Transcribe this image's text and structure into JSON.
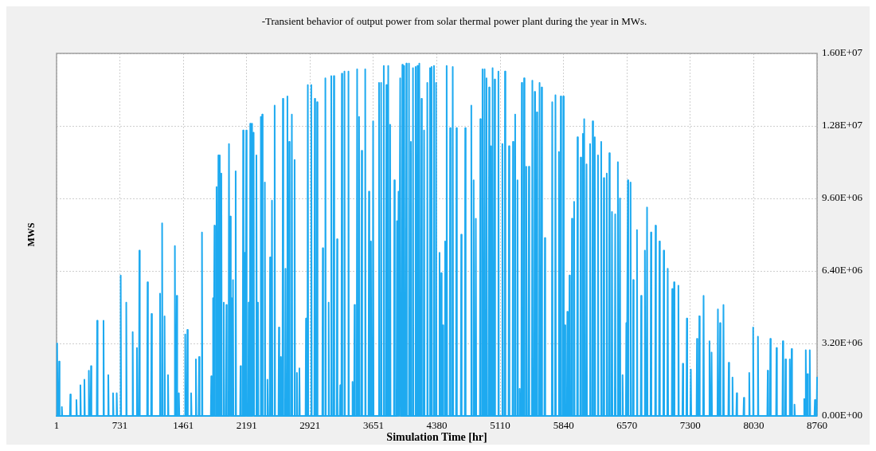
{
  "chart_data": {
    "type": "line",
    "title": "-Transient behavior of output power from solar thermal power plant during the year in MWs.",
    "xlabel": "Simulation Time [hr]",
    "ylabel": "MWS",
    "x": [
      1,
      8,
      13,
      26,
      31,
      36,
      57,
      62,
      67,
      155,
      160,
      165,
      225,
      230,
      235,
      271,
      276,
      281,
      317,
      322,
      327,
      368,
      373,
      378,
      393,
      398,
      403,
      464,
      469,
      474,
      537,
      542,
      547,
      592,
      597,
      602,
      647,
      652,
      657,
      689,
      694,
      699,
      735,
      740,
      745,
      799,
      804,
      809,
      873,
      878,
      883,
      922,
      927,
      932,
      950,
      955,
      960,
      1044,
      1049,
      1054,
      1090,
      1095,
      1100,
      1188,
      1193,
      1198,
      1212,
      1217,
      1222,
      1240,
      1245,
      1250,
      1280,
      1285,
      1290,
      1359,
      1364,
      1369,
      1381,
      1386,
      1391,
      1405,
      1410,
      1415,
      1478,
      1483,
      1488,
      1503,
      1508,
      1513,
      1546,
      1551,
      1556,
      1601,
      1606,
      1611,
      1638,
      1643,
      1648,
      1671,
      1676,
      1681,
      1778,
      1783,
      1788,
      1799,
      1804,
      1809,
      1815,
      1820,
      1825,
      1839,
      1844,
      1849,
      1860,
      1865,
      1870,
      1876,
      1881,
      1886,
      1894,
      1899,
      1904,
      1922,
      1927,
      1932,
      1952,
      1957,
      1962,
      1982,
      1987,
      1992,
      1998,
      2003,
      2008,
      2013,
      2018,
      2023,
      2028,
      2033,
      2038,
      2059,
      2064,
      2069,
      2115,
      2120,
      2125,
      2145,
      2150,
      2155,
      2166,
      2171,
      2176,
      2181,
      2186,
      2191,
      2209,
      2214,
      2219,
      2227,
      2232,
      2237,
      2248,
      2253,
      2258,
      2266,
      2271,
      2276,
      2298,
      2303,
      2308,
      2316,
      2321,
      2326,
      2349,
      2354,
      2359,
      2365,
      2370,
      2375,
      2395,
      2400,
      2405,
      2425,
      2430,
      2435,
      2455,
      2460,
      2465,
      2477,
      2482,
      2487,
      2508,
      2513,
      2518,
      2557,
      2562,
      2567,
      2580,
      2585,
      2590,
      2603,
      2608,
      2613,
      2633,
      2638,
      2643,
      2655,
      2660,
      2665,
      2676,
      2681,
      2686,
      2706,
      2711,
      2716,
      2738,
      2743,
      2748,
      2765,
      2770,
      2775,
      2793,
      2798,
      2803,
      2869,
      2874,
      2879,
      2890,
      2895,
      2900,
      2930,
      2935,
      2940,
      2970,
      2975,
      2980,
      2997,
      3002,
      3007,
      3062,
      3067,
      3072,
      3092,
      3097,
      3102,
      3130,
      3135,
      3140,
      3160,
      3165,
      3170,
      3190,
      3195,
      3200,
      3227,
      3232,
      3237,
      3263,
      3268,
      3273,
      3282,
      3287,
      3292,
      3312,
      3317,
      3322,
      3358,
      3363,
      3368,
      3405,
      3410,
      3415,
      3428,
      3433,
      3438,
      3458,
      3463,
      3468,
      3480,
      3485,
      3490,
      3511,
      3516,
      3521,
      3551,
      3556,
      3561,
      3594,
      3599,
      3604,
      3617,
      3622,
      3627,
      3642,
      3647,
      3652,
      3710,
      3715,
      3720,
      3734,
      3739,
      3744,
      3765,
      3770,
      3775,
      3795,
      3800,
      3805,
      3816,
      3821,
      3826,
      3838,
      3843,
      3848,
      3887,
      3892,
      3897,
      3917,
      3922,
      3927,
      3935,
      3940,
      3945,
      3954,
      3959,
      3964,
      3979,
      3984,
      3989,
      4000,
      4005,
      4010,
      4025,
      4030,
      4035,
      4055,
      4060,
      4065,
      4077,
      4082,
      4087,
      4101,
      4106,
      4111,
      4132,
      4137,
      4142,
      4153,
      4158,
      4163,
      4174,
      4179,
      4184,
      4199,
      4204,
      4209,
      4229,
      4234,
      4239,
      4266,
      4271,
      4276,
      4297,
      4302,
      4307,
      4315,
      4320,
      4325,
      4343,
      4348,
      4353,
      4367,
      4372,
      4377,
      4407,
      4412,
      4417,
      4427,
      4432,
      4437,
      4445,
      4450,
      4455,
      4471,
      4476,
      4481,
      4489,
      4494,
      4499,
      4529,
      4534,
      4539,
      4559,
      4564,
      4569,
      4602,
      4607,
      4612,
      4657,
      4662,
      4667,
      4703,
      4708,
      4713,
      4773,
      4778,
      4783,
      4800,
      4805,
      4810,
      4825,
      4830,
      4835,
      4877,
      4882,
      4887,
      4902,
      4907,
      4912,
      4926,
      4931,
      4936,
      4948,
      4953,
      4958,
      4978,
      4983,
      4988,
      4999,
      5004,
      5009,
      5018,
      5023,
      5028,
      5042,
      5047,
      5052,
      5085,
      5090,
      5095,
      5131,
      5136,
      5141,
      5161,
      5166,
      5171,
      5207,
      5212,
      5217,
      5253,
      5258,
      5263,
      5278,
      5283,
      5288,
      5305,
      5310,
      5315,
      5330,
      5335,
      5340,
      5354,
      5359,
      5364,
      5381,
      5386,
      5391,
      5406,
      5411,
      5416,
      5436,
      5441,
      5446,
      5476,
      5481,
      5486,
      5503,
      5508,
      5513,
      5528,
      5533,
      5538,
      5559,
      5564,
      5569,
      5583,
      5588,
      5593,
      5620,
      5625,
      5630,
      5705,
      5710,
      5715,
      5742,
      5747,
      5752,
      5782,
      5787,
      5792,
      5803,
      5808,
      5813,
      5833,
      5838,
      5843,
      5851,
      5856,
      5861,
      5879,
      5884,
      5889,
      5904,
      5909,
      5914,
      5932,
      5937,
      5942,
      5957,
      5962,
      5967,
      5996,
      6001,
      6006,
      6033,
      6038,
      6043,
      6058,
      6063,
      6068,
      6073,
      6078,
      6083,
      6100,
      6105,
      6110,
      6141,
      6146,
      6151,
      6171,
      6176,
      6181,
      6195,
      6200,
      6205,
      6232,
      6237,
      6242,
      6269,
      6274,
      6279,
      6299,
      6304,
      6309,
      6333,
      6338,
      6343,
      6363,
      6368,
      6373,
      6393,
      6398,
      6403,
      6430,
      6435,
      6440,
      6461,
      6466,
      6471,
      6485,
      6490,
      6495,
      6515,
      6520,
      6525,
      6558,
      6563,
      6568,
      6576,
      6581,
      6586,
      6607,
      6612,
      6617,
      6638,
      6643,
      6648,
      6681,
      6686,
      6691,
      6729,
      6734,
      6739,
      6772,
      6777,
      6782,
      6797,
      6802,
      6807,
      6842,
      6847,
      6852,
      6895,
      6900,
      6905,
      6940,
      6945,
      6950,
      6989,
      6994,
      6999,
      7035,
      7040,
      7045,
      7087,
      7092,
      7097,
      7108,
      7113,
      7118,
      7158,
      7163,
      7168,
      7209,
      7214,
      7219,
      7255,
      7260,
      7265,
      7301,
      7306,
      7311,
      7372,
      7377,
      7382,
      7399,
      7404,
      7409,
      7448,
      7453,
      7458,
      7516,
      7521,
      7526,
      7540,
      7545,
      7550,
      7613,
      7618,
      7623,
      7638,
      7643,
      7648,
      7677,
      7682,
      7687,
      7738,
      7743,
      7748,
      7781,
      7786,
      7791,
      7830,
      7835,
      7840,
      7912,
      7917,
      7922,
      7974,
      7979,
      7984,
      8019,
      8024,
      8029,
      8074,
      8079,
      8084,
      8187,
      8192,
      8197,
      8217,
      8222,
      8227,
      8288,
      8293,
      8298,
      8361,
      8366,
      8371,
      8392,
      8397,
      8402,
      8441,
      8446,
      8451,
      8462,
      8467,
      8472,
      8495,
      8500,
      8505,
      8607,
      8612,
      8617,
      8625,
      8630,
      8635,
      8645,
      8650,
      8655,
      8671,
      8676,
      8681,
      8730,
      8735,
      8740,
      8755,
      8760
    ],
    "series": [
      {
        "color": "#1eaaf0",
        "values": [
          0,
          3200000,
          0,
          0,
          2400000,
          0,
          0,
          400000,
          0,
          0,
          950000,
          0,
          0,
          700000,
          0,
          0,
          1350000,
          0,
          0,
          1600000,
          0,
          0,
          2000000,
          0,
          0,
          2200000,
          0,
          0,
          4200000,
          0,
          0,
          4200000,
          0,
          0,
          1800000,
          0,
          0,
          1000000,
          0,
          0,
          1000000,
          0,
          0,
          6200000,
          0,
          0,
          5000000,
          0,
          0,
          3700000,
          0,
          0,
          3000000,
          0,
          0,
          7300000,
          0,
          0,
          5900000,
          0,
          0,
          4500000,
          0,
          0,
          5400000,
          0,
          0,
          8500000,
          0,
          0,
          4400000,
          0,
          0,
          1800000,
          0,
          0,
          7500000,
          0,
          0,
          5300000,
          0,
          0,
          1000000,
          0,
          0,
          3600000,
          0,
          0,
          3800000,
          0,
          0,
          1000000,
          0,
          0,
          2500000,
          0,
          0,
          2600000,
          0,
          0,
          8100000,
          0,
          0,
          1750000,
          0,
          0,
          5200000,
          0,
          0,
          8400000,
          0,
          0,
          10100000,
          0,
          0,
          11500000,
          0,
          0,
          11500000,
          0,
          0,
          10700000,
          0,
          0,
          5000000,
          0,
          0,
          4900000,
          0,
          0,
          12000000,
          0,
          0,
          8800000,
          0,
          0,
          5200000,
          0,
          0,
          6000000,
          0,
          0,
          10800000,
          0,
          0,
          2200000,
          0,
          0,
          12600000,
          0,
          0,
          7200000,
          0,
          0,
          12600000,
          0,
          0,
          5000000,
          0,
          0,
          12900000,
          0,
          0,
          12900000,
          0,
          0,
          12500000,
          0,
          0,
          11500000,
          0,
          0,
          5000000,
          0,
          0,
          13200000,
          0,
          0,
          13300000,
          0,
          0,
          10300000,
          0,
          0,
          1600000,
          0,
          0,
          7000000,
          0,
          0,
          9500000,
          0,
          0,
          13700000,
          0,
          0,
          3900000,
          0,
          0,
          2600000,
          0,
          0,
          14000000,
          0,
          0,
          6500000,
          0,
          0,
          14100000,
          0,
          0,
          12100000,
          0,
          0,
          13300000,
          0,
          0,
          11300000,
          0,
          0,
          1900000,
          0,
          0,
          2100000,
          0,
          0,
          4300000,
          0,
          0,
          14600000,
          0,
          0,
          14600000,
          0,
          0,
          14000000,
          0,
          0,
          13850000,
          0,
          0,
          7400000,
          0,
          0,
          14900000,
          0,
          0,
          5000000,
          0,
          0,
          15000000,
          0,
          0,
          15000000,
          0,
          0,
          7800000,
          0,
          0,
          1350000,
          0,
          0,
          15100000,
          0,
          0,
          15200000,
          0,
          0,
          15200000,
          0,
          0,
          1500000,
          0,
          0,
          4900000,
          0,
          0,
          15300000,
          0,
          0,
          13200000,
          0,
          0,
          11700000,
          0,
          0,
          15300000,
          0,
          0,
          9900000,
          0,
          0,
          7700000,
          0,
          0,
          13000000,
          0,
          0,
          14700000,
          0,
          0,
          14700000,
          0,
          0,
          15450000,
          0,
          0,
          14600000,
          0,
          0,
          15450000,
          0,
          0,
          12850000,
          0,
          0,
          10400000,
          0,
          0,
          8600000,
          0,
          0,
          9900000,
          0,
          0,
          14900000,
          0,
          0,
          15500000,
          0,
          0,
          15450000,
          0,
          0,
          15550000,
          0,
          0,
          15550000,
          0,
          0,
          12100000,
          0,
          0,
          15350000,
          0,
          0,
          15400000,
          0,
          0,
          15450000,
          0,
          0,
          15550000,
          0,
          0,
          14000000,
          0,
          0,
          12600000,
          0,
          0,
          14700000,
          0,
          0,
          15350000,
          0,
          0,
          15400000,
          0,
          0,
          15450000,
          0,
          0,
          14700000,
          0,
          0,
          7200000,
          0,
          0,
          6300000,
          0,
          0,
          4000000,
          0,
          0,
          7700000,
          0,
          0,
          15450000,
          0,
          0,
          12700000,
          0,
          0,
          15400000,
          0,
          0,
          12700000,
          0,
          0,
          8000000,
          0,
          0,
          12700000,
          0,
          0,
          13700000,
          0,
          0,
          10400000,
          0,
          0,
          8700000,
          0,
          0,
          13100000,
          0,
          0,
          15300000,
          0,
          0,
          15300000,
          0,
          0,
          14900000,
          0,
          0,
          14500000,
          0,
          0,
          11900000,
          0,
          0,
          15350000,
          0,
          0,
          14850000,
          0,
          0,
          15200000,
          0,
          0,
          12000000,
          0,
          0,
          15200000,
          0,
          0,
          11900000,
          0,
          0,
          12100000,
          0,
          0,
          13300000,
          0,
          0,
          10400000,
          0,
          0,
          1200000,
          0,
          0,
          14700000,
          0,
          0,
          14900000,
          0,
          0,
          11000000,
          0,
          0,
          11000000,
          0,
          0,
          14800000,
          0,
          0,
          14300000,
          0,
          0,
          13400000,
          0,
          0,
          14700000,
          0,
          0,
          14500000,
          0,
          0,
          7850000,
          0,
          0,
          13850000,
          0,
          0,
          14150000,
          0,
          0,
          11650000,
          0,
          0,
          14100000,
          0,
          0,
          14100000,
          0,
          0,
          4000000,
          0,
          0,
          4600000,
          0,
          0,
          6200000,
          0,
          0,
          8700000,
          0,
          0,
          9450000,
          0,
          0,
          12300000,
          0,
          0,
          11400000,
          0,
          0,
          12450000,
          0,
          0,
          13100000,
          0,
          0,
          11100000,
          0,
          0,
          12000000,
          0,
          0,
          13000000,
          0,
          0,
          12300000,
          0,
          0,
          11500000,
          0,
          0,
          12100000,
          0,
          0,
          10500000,
          0,
          0,
          10700000,
          0,
          0,
          11600000,
          0,
          0,
          9000000,
          0,
          0,
          8900000,
          0,
          0,
          11200000,
          0,
          0,
          9600000,
          0,
          0,
          1800000,
          0,
          0,
          4100000,
          0,
          0,
          10400000,
          0,
          0,
          10300000,
          0,
          0,
          6000000,
          0,
          0,
          8200000,
          0,
          0,
          5300000,
          0,
          0,
          7300000,
          0,
          0,
          9200000,
          0,
          0,
          8100000,
          0,
          0,
          8400000,
          0,
          0,
          7700000,
          0,
          0,
          7300000,
          0,
          0,
          6500000,
          0,
          0,
          5600000,
          0,
          0,
          5900000,
          0,
          0,
          5750000,
          0,
          0,
          2300000,
          0,
          0,
          4300000,
          0,
          0,
          2050000,
          0,
          0,
          3400000,
          0,
          0,
          4400000,
          0,
          0,
          5300000,
          0,
          0,
          3300000,
          0,
          0,
          2800000,
          0,
          0,
          4700000,
          0,
          0,
          4100000,
          0,
          0,
          4900000,
          0,
          0,
          2350000,
          0,
          0,
          1700000,
          0,
          0,
          1000000,
          0,
          0,
          800000,
          0,
          0,
          1900000,
          0,
          0,
          3900000,
          0,
          0,
          3500000,
          0,
          0,
          2000000,
          0,
          0,
          3400000,
          0,
          0,
          3000000,
          0,
          0,
          3300000,
          0,
          0,
          2500000,
          0,
          0,
          2500000,
          0,
          0,
          2950000,
          0,
          0,
          500000,
          0,
          0,
          750000,
          0,
          0,
          2900000,
          0,
          0,
          1850000,
          0,
          0,
          2900000,
          0,
          0,
          700000,
          0,
          0,
          1700000
        ]
      }
    ],
    "xlim": [
      1,
      8760
    ],
    "xticks": [
      1,
      731,
      1461,
      2191,
      2921,
      3651,
      4380,
      5110,
      5840,
      6570,
      7300,
      8030,
      8760
    ],
    "ylim": [
      0,
      16000000
    ],
    "yticks": [
      {
        "value": 0,
        "label": "0.00E+00"
      },
      {
        "value": 3200000,
        "label": "3.20E+06"
      },
      {
        "value": 6400000,
        "label": "6.40E+06"
      },
      {
        "value": 9600000,
        "label": "9.60E+06"
      },
      {
        "value": 12800000,
        "label": "1.28E+07"
      },
      {
        "value": 16000000,
        "label": "1.60E+07"
      }
    ],
    "grid": true,
    "marker": "none",
    "line_style": "solid"
  }
}
